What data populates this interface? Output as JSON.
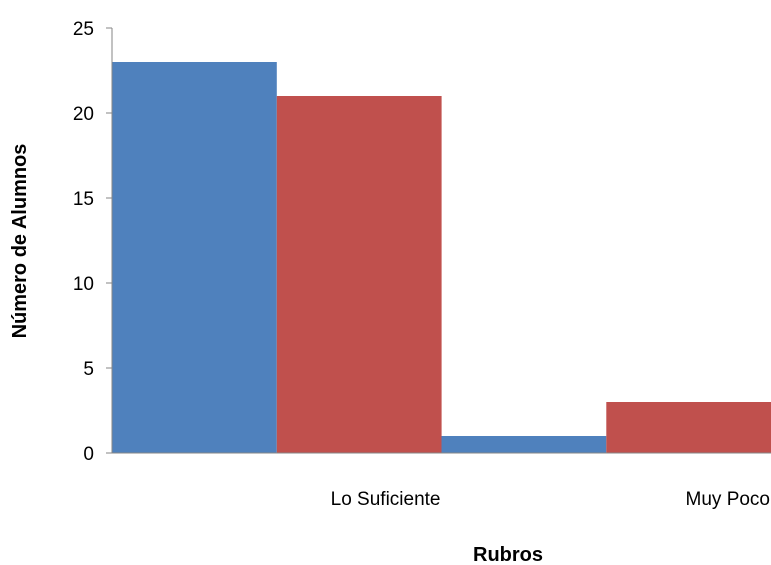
{
  "chart_data": {
    "type": "bar",
    "title": "",
    "xlabel": "Rubros",
    "ylabel": "Número de Alumnos",
    "categories": [
      "Lo Suficiente",
      "Muy Poco"
    ],
    "series": [
      {
        "values": [
          23,
          1
        ],
        "color": "#4F81BD"
      },
      {
        "values": [
          21,
          3
        ],
        "color": "#C0504D"
      }
    ],
    "ylim": [
      0,
      25
    ],
    "yticks": [
      0,
      5,
      10,
      15,
      20,
      25
    ],
    "grid": false,
    "legend": "none"
  }
}
